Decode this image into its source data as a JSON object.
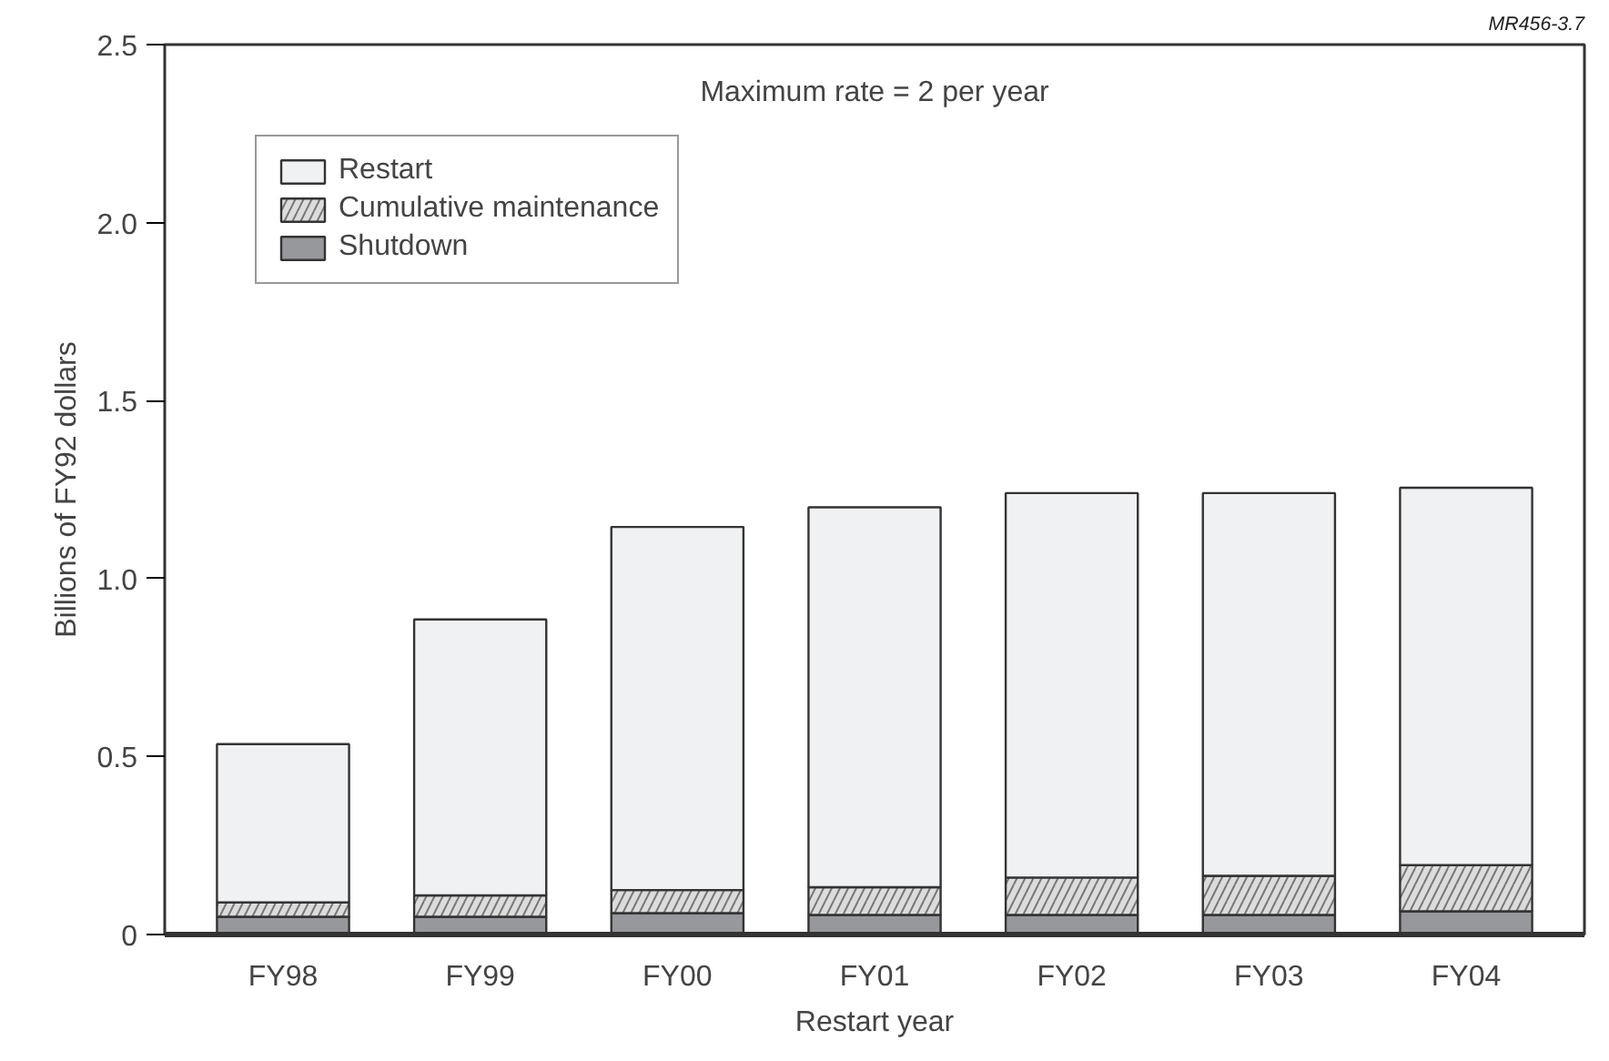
{
  "chart_data": {
    "type": "bar",
    "stacked": true,
    "xlabel": "Restart year",
    "ylabel": "Billions of FY92 dollars",
    "categories": [
      "FY98",
      "FY99",
      "FY00",
      "FY01",
      "FY02",
      "FY03",
      "FY04"
    ],
    "series": [
      {
        "name": "Shutdown",
        "color": "#97989b",
        "values": [
          0.05,
          0.05,
          0.06,
          0.055,
          0.055,
          0.055,
          0.065
        ]
      },
      {
        "name": "Cumulative maintenance",
        "color": "#dcdcdc",
        "values": [
          0.04,
          0.06,
          0.065,
          0.078,
          0.105,
          0.11,
          0.13
        ]
      },
      {
        "name": "Restart",
        "color": "#f0f1f3",
        "values": [
          0.445,
          0.775,
          1.02,
          1.067,
          1.08,
          1.075,
          1.06
        ]
      }
    ],
    "ylim": [
      0,
      2.5
    ],
    "yticks": [
      0,
      0.5,
      {
        "value": 1.0,
        "label": "1.0"
      },
      1.5,
      {
        "value": 2.0,
        "label": "2.0"
      },
      2.5
    ],
    "legend": "top left",
    "grid": false,
    "annotations": [
      {
        "text": "Maximum rate = 2 per year"
      },
      "MR456-3.7"
    ]
  }
}
